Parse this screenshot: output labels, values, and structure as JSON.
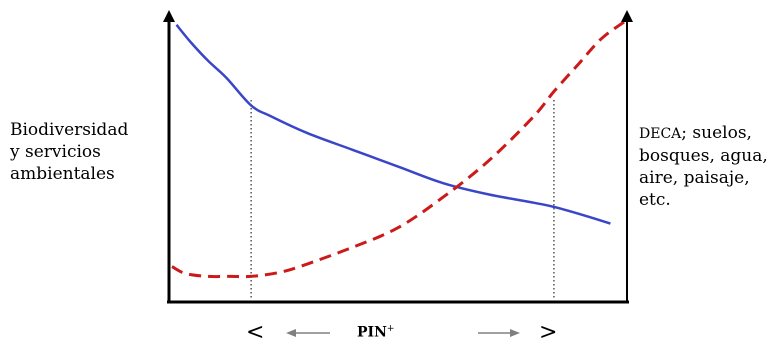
{
  "chart_data": {
    "type": "line",
    "title": "",
    "left_axis_label_lines": [
      "Biodiversidad",
      "y servicios",
      "ambientales"
    ],
    "right_axis_label": {
      "prefix": "DECA",
      "lines": [
        "; suelos,",
        "bosques, agua,",
        "aire, paisaje,",
        "etc."
      ]
    },
    "x_axis": {
      "label": "PIN",
      "label_superscript": "+",
      "less_symbol": "<",
      "greater_symbol": ">"
    },
    "xlim": [
      0,
      100
    ],
    "ylim": [
      0,
      100
    ],
    "grid": false,
    "reference_lines_x": [
      17.5,
      84.5
    ],
    "series": [
      {
        "style": "solid",
        "color": "#3a46c8",
        "x": [
          1,
          4,
          8,
          12,
          17.5,
          22,
          30,
          40,
          50,
          60,
          70,
          80,
          84.5,
          90,
          97
        ],
        "y": [
          99,
          93,
          86,
          80,
          70,
          66,
          60,
          54,
          48,
          42,
          38,
          35,
          33.5,
          31,
          27.5
        ]
      },
      {
        "style": "dashed",
        "color": "#cc1a1a",
        "x": [
          0,
          3,
          8,
          13,
          17.5,
          24,
          30,
          40,
          50,
          60,
          70,
          80,
          84.5,
          90,
          95,
          100
        ],
        "y": [
          12,
          9.5,
          8.5,
          8.5,
          8.5,
          10,
          13,
          19,
          26,
          37,
          50,
          66,
          75,
          85,
          94,
          100
        ]
      }
    ]
  }
}
